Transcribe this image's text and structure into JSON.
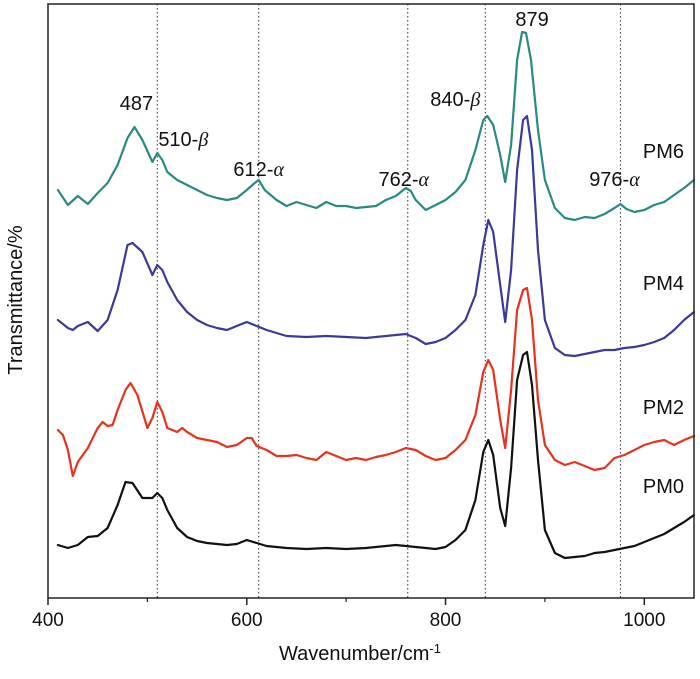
{
  "chart_data": {
    "type": "line",
    "xlabel": "Wavenumber/cm",
    "xlabel_sup": "-1",
    "ylabel": "Transmittance/%",
    "xlim": [
      400,
      1050
    ],
    "x_ticks": [
      400,
      600,
      800,
      1000
    ],
    "y_ticks": [],
    "grid": false,
    "reference_lines": [
      510,
      612,
      762,
      840,
      976
    ],
    "annotations": [
      {
        "x": 487,
        "text": "487",
        "greek": ""
      },
      {
        "x": 510,
        "text": "510-",
        "greek": "β"
      },
      {
        "x": 612,
        "text": "612-",
        "greek": "α"
      },
      {
        "x": 762,
        "text": "762-",
        "greek": "α"
      },
      {
        "x": 840,
        "text": "840-",
        "greek": "β"
      },
      {
        "x": 879,
        "text": "879",
        "greek": ""
      },
      {
        "x": 976,
        "text": "976-",
        "greek": "α"
      }
    ],
    "series": [
      {
        "name": "PM6",
        "color": "#2a8a82",
        "points": [
          [
            410,
            190
          ],
          [
            420,
            205
          ],
          [
            430,
            196
          ],
          [
            440,
            204
          ],
          [
            450,
            193
          ],
          [
            460,
            183
          ],
          [
            470,
            165
          ],
          [
            480,
            138
          ],
          [
            487,
            127
          ],
          [
            495,
            140
          ],
          [
            505,
            162
          ],
          [
            510,
            153
          ],
          [
            515,
            160
          ],
          [
            520,
            172
          ],
          [
            530,
            180
          ],
          [
            540,
            185
          ],
          [
            550,
            190
          ],
          [
            560,
            195
          ],
          [
            570,
            198
          ],
          [
            580,
            200
          ],
          [
            590,
            198
          ],
          [
            600,
            190
          ],
          [
            608,
            183
          ],
          [
            612,
            180
          ],
          [
            618,
            190
          ],
          [
            630,
            200
          ],
          [
            640,
            206
          ],
          [
            650,
            202
          ],
          [
            660,
            205
          ],
          [
            670,
            208
          ],
          [
            680,
            202
          ],
          [
            690,
            206
          ],
          [
            700,
            206
          ],
          [
            710,
            208
          ],
          [
            720,
            207
          ],
          [
            730,
            206
          ],
          [
            740,
            200
          ],
          [
            750,
            196
          ],
          [
            760,
            188
          ],
          [
            765,
            191
          ],
          [
            770,
            200
          ],
          [
            780,
            210
          ],
          [
            790,
            205
          ],
          [
            800,
            200
          ],
          [
            810,
            192
          ],
          [
            820,
            180
          ],
          [
            830,
            150
          ],
          [
            838,
            120
          ],
          [
            842,
            116
          ],
          [
            848,
            125
          ],
          [
            855,
            155
          ],
          [
            860,
            182
          ],
          [
            866,
            145
          ],
          [
            872,
            60
          ],
          [
            877,
            32
          ],
          [
            881,
            33
          ],
          [
            886,
            60
          ],
          [
            893,
            130
          ],
          [
            900,
            180
          ],
          [
            910,
            208
          ],
          [
            920,
            218
          ],
          [
            930,
            220
          ],
          [
            940,
            217
          ],
          [
            950,
            218
          ],
          [
            960,
            214
          ],
          [
            970,
            208
          ],
          [
            976,
            204
          ],
          [
            982,
            209
          ],
          [
            990,
            212
          ],
          [
            1000,
            210
          ],
          [
            1010,
            205
          ],
          [
            1020,
            202
          ],
          [
            1030,
            195
          ],
          [
            1040,
            188
          ],
          [
            1050,
            180
          ]
        ]
      },
      {
        "name": "PM4",
        "color": "#3a3a9a",
        "points": [
          [
            410,
            320
          ],
          [
            420,
            328
          ],
          [
            425,
            330
          ],
          [
            430,
            326
          ],
          [
            440,
            322
          ],
          [
            450,
            331
          ],
          [
            460,
            320
          ],
          [
            470,
            290
          ],
          [
            480,
            245
          ],
          [
            485,
            243
          ],
          [
            495,
            252
          ],
          [
            505,
            275
          ],
          [
            510,
            265
          ],
          [
            515,
            270
          ],
          [
            520,
            282
          ],
          [
            530,
            300
          ],
          [
            540,
            312
          ],
          [
            550,
            320
          ],
          [
            560,
            325
          ],
          [
            570,
            328
          ],
          [
            580,
            330
          ],
          [
            590,
            326
          ],
          [
            600,
            322
          ],
          [
            610,
            326
          ],
          [
            620,
            330
          ],
          [
            640,
            336
          ],
          [
            660,
            337
          ],
          [
            680,
            336
          ],
          [
            700,
            337
          ],
          [
            720,
            338
          ],
          [
            740,
            336
          ],
          [
            760,
            334
          ],
          [
            770,
            338
          ],
          [
            780,
            344
          ],
          [
            790,
            342
          ],
          [
            800,
            338
          ],
          [
            810,
            330
          ],
          [
            820,
            320
          ],
          [
            830,
            295
          ],
          [
            838,
            245
          ],
          [
            843,
            220
          ],
          [
            848,
            232
          ],
          [
            855,
            285
          ],
          [
            860,
            322
          ],
          [
            866,
            270
          ],
          [
            872,
            170
          ],
          [
            878,
            120
          ],
          [
            882,
            116
          ],
          [
            887,
            150
          ],
          [
            893,
            250
          ],
          [
            900,
            320
          ],
          [
            910,
            348
          ],
          [
            920,
            355
          ],
          [
            930,
            356
          ],
          [
            940,
            354
          ],
          [
            950,
            352
          ],
          [
            960,
            350
          ],
          [
            970,
            350
          ],
          [
            980,
            348
          ],
          [
            990,
            347
          ],
          [
            1000,
            345
          ],
          [
            1010,
            342
          ],
          [
            1020,
            338
          ],
          [
            1030,
            330
          ],
          [
            1040,
            320
          ],
          [
            1050,
            312
          ]
        ]
      },
      {
        "name": "PM2",
        "color": "#e8321e",
        "points": [
          [
            410,
            430
          ],
          [
            415,
            435
          ],
          [
            420,
            450
          ],
          [
            425,
            476
          ],
          [
            430,
            462
          ],
          [
            440,
            448
          ],
          [
            450,
            428
          ],
          [
            455,
            422
          ],
          [
            460,
            426
          ],
          [
            465,
            425
          ],
          [
            470,
            410
          ],
          [
            478,
            390
          ],
          [
            483,
            383
          ],
          [
            490,
            395
          ],
          [
            500,
            428
          ],
          [
            505,
            418
          ],
          [
            510,
            402
          ],
          [
            515,
            412
          ],
          [
            520,
            428
          ],
          [
            530,
            432
          ],
          [
            535,
            428
          ],
          [
            540,
            432
          ],
          [
            550,
            438
          ],
          [
            560,
            440
          ],
          [
            570,
            442
          ],
          [
            580,
            447
          ],
          [
            590,
            445
          ],
          [
            600,
            438
          ],
          [
            605,
            438
          ],
          [
            610,
            446
          ],
          [
            620,
            450
          ],
          [
            630,
            456
          ],
          [
            640,
            456
          ],
          [
            650,
            455
          ],
          [
            660,
            458
          ],
          [
            670,
            460
          ],
          [
            680,
            452
          ],
          [
            690,
            456
          ],
          [
            700,
            460
          ],
          [
            710,
            458
          ],
          [
            720,
            460
          ],
          [
            730,
            457
          ],
          [
            740,
            455
          ],
          [
            750,
            452
          ],
          [
            760,
            448
          ],
          [
            770,
            450
          ],
          [
            780,
            456
          ],
          [
            790,
            460
          ],
          [
            800,
            458
          ],
          [
            810,
            450
          ],
          [
            820,
            440
          ],
          [
            830,
            415
          ],
          [
            838,
            372
          ],
          [
            843,
            360
          ],
          [
            848,
            370
          ],
          [
            855,
            420
          ],
          [
            860,
            448
          ],
          [
            866,
            390
          ],
          [
            872,
            310
          ],
          [
            878,
            290
          ],
          [
            882,
            288
          ],
          [
            887,
            320
          ],
          [
            893,
            400
          ],
          [
            900,
            445
          ],
          [
            910,
            460
          ],
          [
            920,
            465
          ],
          [
            930,
            462
          ],
          [
            940,
            466
          ],
          [
            950,
            470
          ],
          [
            960,
            468
          ],
          [
            970,
            458
          ],
          [
            980,
            455
          ],
          [
            990,
            450
          ],
          [
            1000,
            445
          ],
          [
            1010,
            442
          ],
          [
            1020,
            440
          ],
          [
            1030,
            445
          ],
          [
            1040,
            440
          ],
          [
            1050,
            436
          ]
        ]
      },
      {
        "name": "PM0",
        "color": "#111111",
        "points": [
          [
            410,
            545
          ],
          [
            420,
            548
          ],
          [
            430,
            545
          ],
          [
            440,
            537
          ],
          [
            450,
            536
          ],
          [
            460,
            528
          ],
          [
            470,
            505
          ],
          [
            478,
            482
          ],
          [
            485,
            483
          ],
          [
            495,
            498
          ],
          [
            505,
            498
          ],
          [
            510,
            493
          ],
          [
            515,
            498
          ],
          [
            520,
            510
          ],
          [
            530,
            528
          ],
          [
            540,
            537
          ],
          [
            550,
            541
          ],
          [
            560,
            543
          ],
          [
            570,
            544
          ],
          [
            580,
            545
          ],
          [
            590,
            544
          ],
          [
            600,
            540
          ],
          [
            610,
            543
          ],
          [
            620,
            546
          ],
          [
            640,
            548
          ],
          [
            660,
            549
          ],
          [
            680,
            548
          ],
          [
            700,
            549
          ],
          [
            720,
            548
          ],
          [
            740,
            546
          ],
          [
            750,
            545
          ],
          [
            760,
            546
          ],
          [
            770,
            547
          ],
          [
            780,
            548
          ],
          [
            790,
            549
          ],
          [
            800,
            547
          ],
          [
            810,
            540
          ],
          [
            820,
            530
          ],
          [
            830,
            500
          ],
          [
            838,
            452
          ],
          [
            843,
            440
          ],
          [
            848,
            455
          ],
          [
            855,
            508
          ],
          [
            860,
            526
          ],
          [
            866,
            468
          ],
          [
            872,
            380
          ],
          [
            878,
            355
          ],
          [
            882,
            352
          ],
          [
            887,
            385
          ],
          [
            893,
            460
          ],
          [
            900,
            530
          ],
          [
            910,
            553
          ],
          [
            920,
            558
          ],
          [
            930,
            557
          ],
          [
            940,
            556
          ],
          [
            950,
            553
          ],
          [
            960,
            552
          ],
          [
            970,
            550
          ],
          [
            980,
            548
          ],
          [
            990,
            546
          ],
          [
            1000,
            542
          ],
          [
            1010,
            538
          ],
          [
            1020,
            534
          ],
          [
            1030,
            528
          ],
          [
            1040,
            522
          ],
          [
            1050,
            515
          ]
        ]
      }
    ]
  }
}
